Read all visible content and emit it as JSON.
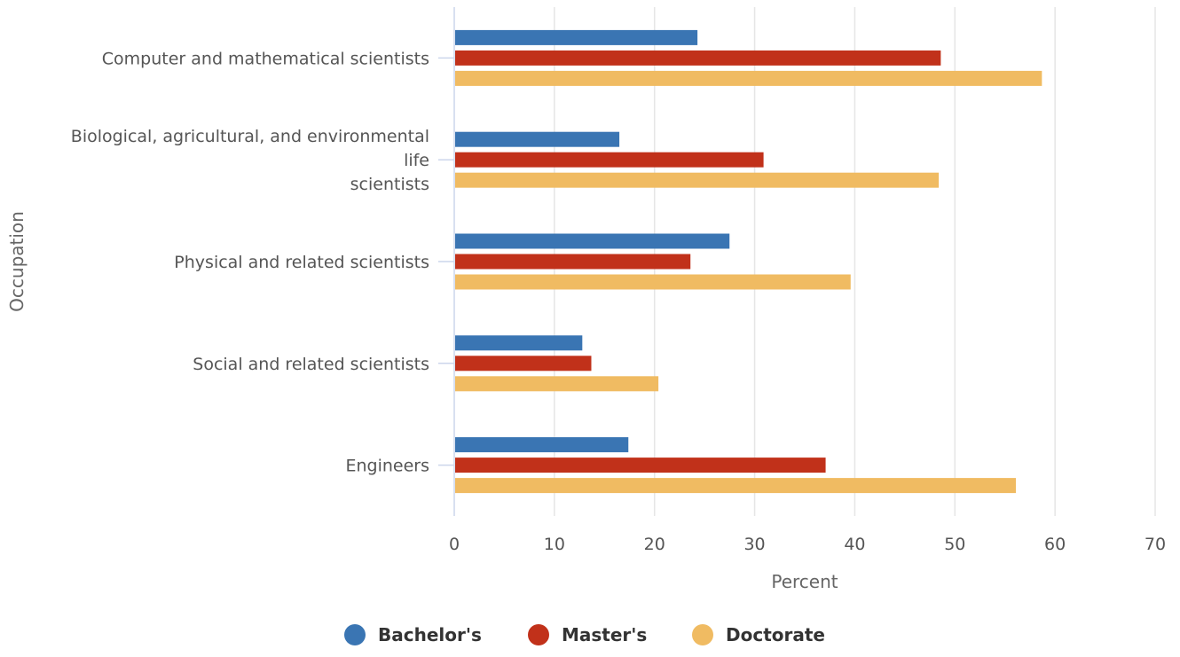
{
  "chart_data": {
    "type": "bar",
    "orientation": "horizontal",
    "categories": [
      "Computer and mathematical scientists",
      "Biological, agricultural, and environmental life scientists",
      "Physical and related scientists",
      "Social and related scientists",
      "Engineers"
    ],
    "category_label_lines": [
      [
        "Computer and mathematical scientists"
      ],
      [
        "Biological, agricultural, and environmental",
        "life",
        "scientists"
      ],
      [
        "Physical and related scientists"
      ],
      [
        "Social and related scientists"
      ],
      [
        "Engineers"
      ]
    ],
    "series": [
      {
        "name": "Bachelor's",
        "color": "#3a75b3",
        "values": [
          24.2,
          16.4,
          27.4,
          12.7,
          17.3
        ]
      },
      {
        "name": "Master's",
        "color": "#c1311a",
        "values": [
          48.5,
          30.8,
          23.5,
          13.6,
          37.0
        ]
      },
      {
        "name": "Doctorate",
        "color": "#f0bb62",
        "values": [
          58.6,
          48.3,
          39.5,
          20.3,
          56.0
        ]
      }
    ],
    "xlabel": "Percent",
    "ylabel": "Occupation",
    "xlim": [
      0,
      70
    ],
    "xticks": [
      "0",
      "10",
      "20",
      "30",
      "40",
      "50",
      "60",
      "70"
    ],
    "grid": true,
    "legend_position": "bottom"
  }
}
